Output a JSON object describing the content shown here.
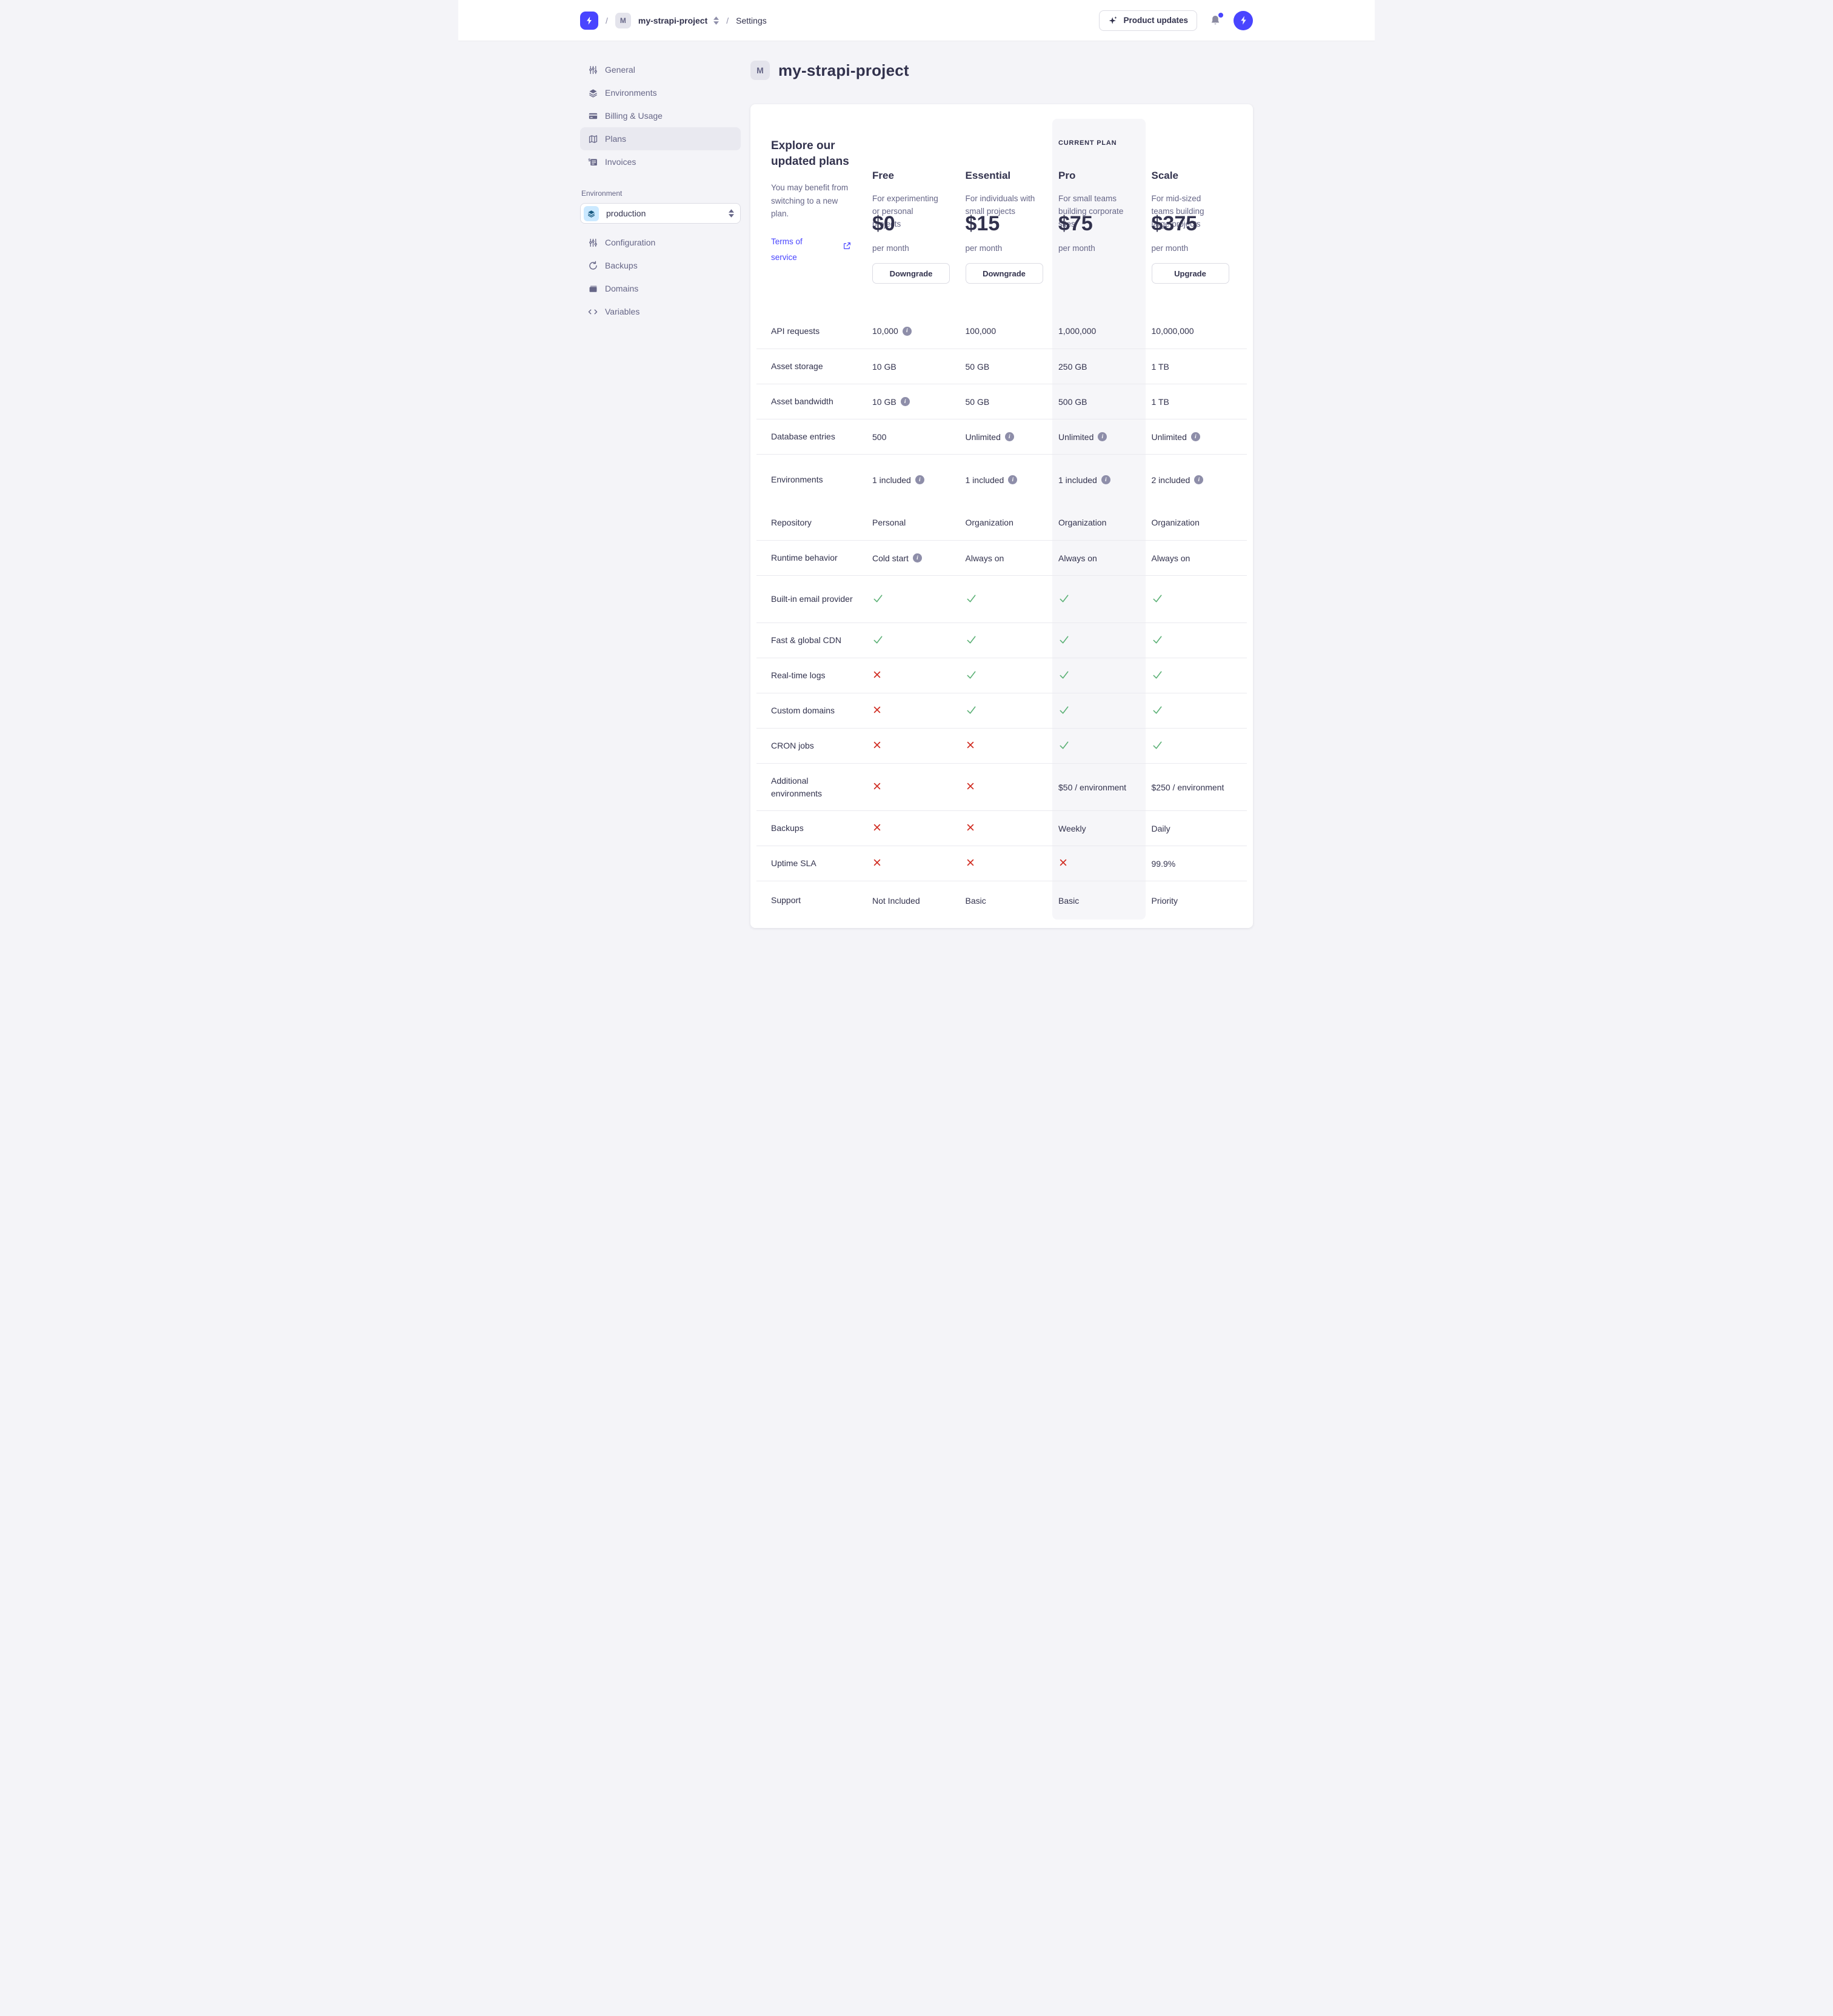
{
  "header": {
    "breadcrumb": {
      "separator": "/",
      "project_initial": "M",
      "project_name": "my-strapi-project",
      "section": "Settings"
    },
    "product_updates_label": "Product updates"
  },
  "sidebar": {
    "nav": [
      {
        "id": "general",
        "label": "General",
        "icon": "sliders-icon",
        "active": false
      },
      {
        "id": "environments",
        "label": "Environments",
        "icon": "layers-icon",
        "active": false
      },
      {
        "id": "billing-usage",
        "label": "Billing & Usage",
        "icon": "credit-card-icon",
        "active": false
      },
      {
        "id": "plans",
        "label": "Plans",
        "icon": "map-icon",
        "active": true
      },
      {
        "id": "invoices",
        "label": "Invoices",
        "icon": "invoice-icon",
        "active": false
      }
    ],
    "environment_section": {
      "label": "Environment",
      "select_value": "production"
    },
    "env_nav": [
      {
        "id": "configuration",
        "label": "Configuration",
        "icon": "sliders-icon",
        "active": false
      },
      {
        "id": "backups",
        "label": "Backups",
        "icon": "refresh-icon",
        "active": false
      },
      {
        "id": "domains",
        "label": "Domains",
        "icon": "folder-icon",
        "active": false
      },
      {
        "id": "variables",
        "label": "Variables",
        "icon": "code-icon",
        "active": false
      }
    ]
  },
  "page": {
    "project_initial": "M",
    "title": "my-strapi-project"
  },
  "plans_card": {
    "intro": {
      "title": "Explore our updated plans",
      "description": "You may benefit from switching to a new plan.",
      "link_label": "Terms of service"
    },
    "current_plan_label": "CURRENT PLAN",
    "columns": [
      {
        "id": "free",
        "name": "Free",
        "description": "For experimenting or personal projects",
        "price": "$0",
        "period": "per month",
        "action": "Downgrade",
        "current": false
      },
      {
        "id": "essential",
        "name": "Essential",
        "description": "For individuals with small projects",
        "price": "$15",
        "period": "per month",
        "action": "Downgrade",
        "current": false
      },
      {
        "id": "pro",
        "name": "Pro",
        "description": "For small teams building corporate sites",
        "price": "$75",
        "period": "per month",
        "action": null,
        "current": true
      },
      {
        "id": "scale",
        "name": "Scale",
        "description": "For mid-sized teams building large projects",
        "price": "$375",
        "period": "per month",
        "action": "Upgrade",
        "current": false
      }
    ],
    "features": [
      {
        "label": "API requests",
        "cells": [
          {
            "type": "text",
            "text": "10,000",
            "info": true
          },
          {
            "type": "text",
            "text": "100,000"
          },
          {
            "type": "text",
            "text": "1,000,000"
          },
          {
            "type": "text",
            "text": "10,000,000"
          }
        ]
      },
      {
        "label": "Asset storage",
        "cells": [
          {
            "type": "text",
            "text": "10 GB"
          },
          {
            "type": "text",
            "text": "50 GB"
          },
          {
            "type": "text",
            "text": "250 GB"
          },
          {
            "type": "text",
            "text": "1 TB"
          }
        ]
      },
      {
        "label": "Asset bandwidth",
        "cells": [
          {
            "type": "text",
            "text": "10 GB",
            "info": true
          },
          {
            "type": "text",
            "text": "50 GB"
          },
          {
            "type": "text",
            "text": "500 GB"
          },
          {
            "type": "text",
            "text": "1 TB"
          }
        ]
      },
      {
        "label": "Database entries",
        "cells": [
          {
            "type": "text",
            "text": "500"
          },
          {
            "type": "text",
            "text": "Unlimited",
            "info": true
          },
          {
            "type": "text",
            "text": "Unlimited",
            "info": true
          },
          {
            "type": "text",
            "text": "Unlimited",
            "info": true
          }
        ]
      },
      {
        "label": "Environments",
        "height": "env",
        "divider_below": false,
        "cells": [
          {
            "type": "text",
            "text": "1 included",
            "info": true
          },
          {
            "type": "text",
            "text": "1 included",
            "info": true
          },
          {
            "type": "text",
            "text": "1 included",
            "info": true
          },
          {
            "type": "text",
            "text": "2 included",
            "info": true
          }
        ]
      },
      {
        "label": "Repository",
        "no_divider": true,
        "cells": [
          {
            "type": "text",
            "text": "Personal"
          },
          {
            "type": "text",
            "text": "Organization"
          },
          {
            "type": "text",
            "text": "Organization"
          },
          {
            "type": "text",
            "text": "Organization"
          }
        ]
      },
      {
        "label": "Runtime behavior",
        "cells": [
          {
            "type": "text",
            "text": "Cold start",
            "info": true
          },
          {
            "type": "text",
            "text": "Always on"
          },
          {
            "type": "text",
            "text": "Always on"
          },
          {
            "type": "text",
            "text": "Always on"
          }
        ]
      },
      {
        "label": "Built-in email provider",
        "height": "tall",
        "cells": [
          {
            "type": "check"
          },
          {
            "type": "check"
          },
          {
            "type": "check"
          },
          {
            "type": "check"
          }
        ]
      },
      {
        "label": "Fast & global CDN",
        "cells": [
          {
            "type": "check"
          },
          {
            "type": "check"
          },
          {
            "type": "check"
          },
          {
            "type": "check"
          }
        ]
      },
      {
        "label": "Real-time logs",
        "cells": [
          {
            "type": "cross"
          },
          {
            "type": "check"
          },
          {
            "type": "check"
          },
          {
            "type": "check"
          }
        ]
      },
      {
        "label": "Custom domains",
        "cells": [
          {
            "type": "cross"
          },
          {
            "type": "check"
          },
          {
            "type": "check"
          },
          {
            "type": "check"
          }
        ]
      },
      {
        "label": "CRON jobs",
        "cells": [
          {
            "type": "cross"
          },
          {
            "type": "cross"
          },
          {
            "type": "check"
          },
          {
            "type": "check"
          }
        ]
      },
      {
        "label": "Additional environments",
        "height": "tall",
        "cells": [
          {
            "type": "cross"
          },
          {
            "type": "cross"
          },
          {
            "type": "text",
            "text": "$50 / environment"
          },
          {
            "type": "text",
            "text": "$250 / environment"
          }
        ]
      },
      {
        "label": "Backups",
        "cells": [
          {
            "type": "cross"
          },
          {
            "type": "cross"
          },
          {
            "type": "text",
            "text": "Weekly"
          },
          {
            "type": "text",
            "text": "Daily"
          }
        ]
      },
      {
        "label": "Uptime SLA",
        "cells": [
          {
            "type": "cross"
          },
          {
            "type": "cross"
          },
          {
            "type": "cross"
          },
          {
            "type": "text",
            "text": "99.9%"
          }
        ]
      },
      {
        "label": "Support",
        "height": "support",
        "cells": [
          {
            "type": "text",
            "text": "Not Included"
          },
          {
            "type": "text",
            "text": "Basic"
          },
          {
            "type": "text",
            "text": "Basic"
          },
          {
            "type": "text",
            "text": "Priority"
          }
        ]
      }
    ]
  },
  "colors": {
    "brand_purple": "#4945ff",
    "text_dark": "#32324d",
    "text_gray": "#666687",
    "divider": "#eaeaef",
    "pro_highlight": "#f6f6f9",
    "check_green": "#5cb176",
    "cross_red": "#d02b20"
  }
}
